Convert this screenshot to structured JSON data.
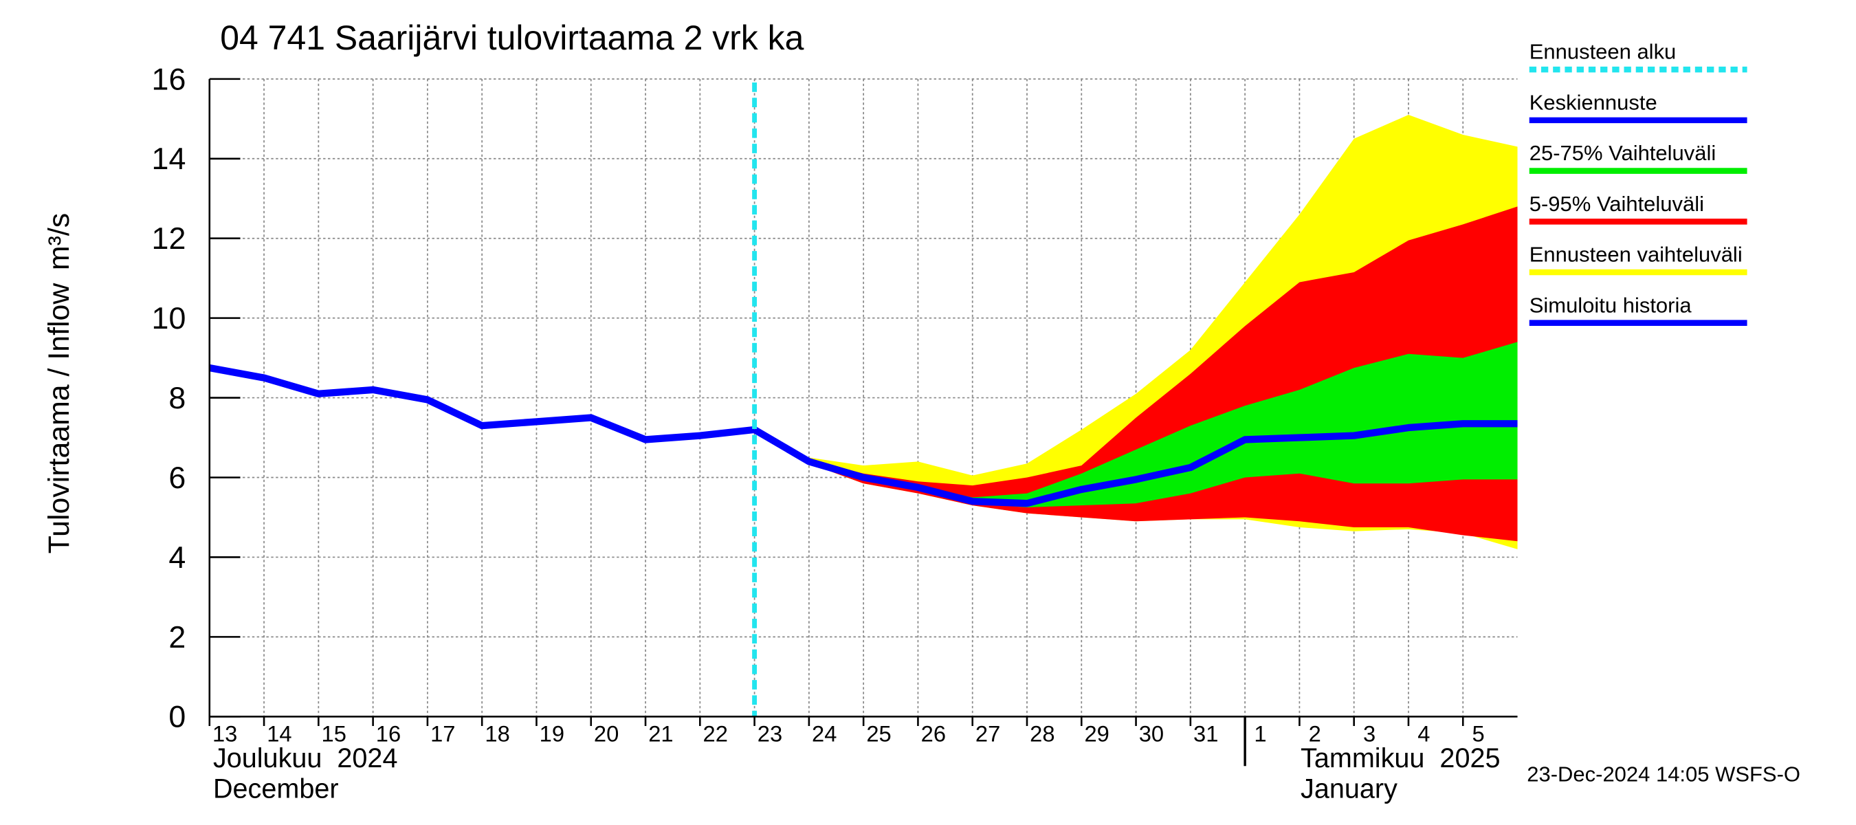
{
  "chart_data": {
    "type": "line",
    "title": "04 741 Saarijärvi tulovirtaama 2 vrk ka",
    "y_label": "Tulovirtaama / Inflow",
    "y_unit": "m³/s",
    "month_labels": [
      {
        "line1": "Joulukuu  2024",
        "line2": "December",
        "x": "2024-12-13"
      },
      {
        "line1": "Tammikuu  2025",
        "line2": "January",
        "x": "2025-01-01"
      }
    ],
    "footer": "23-Dec-2024 14:05 WSFS-O",
    "xlim": [
      "2024-12-13",
      "2025-01-06"
    ],
    "xticks": [
      {
        "value": "2024-12-13",
        "label": "13"
      },
      {
        "value": "2024-12-14",
        "label": "14"
      },
      {
        "value": "2024-12-15",
        "label": "15"
      },
      {
        "value": "2024-12-16",
        "label": "16"
      },
      {
        "value": "2024-12-17",
        "label": "17"
      },
      {
        "value": "2024-12-18",
        "label": "18"
      },
      {
        "value": "2024-12-19",
        "label": "19"
      },
      {
        "value": "2024-12-20",
        "label": "20"
      },
      {
        "value": "2024-12-21",
        "label": "21"
      },
      {
        "value": "2024-12-22",
        "label": "22"
      },
      {
        "value": "2024-12-23",
        "label": "23"
      },
      {
        "value": "2024-12-24",
        "label": "24"
      },
      {
        "value": "2024-12-25",
        "label": "25"
      },
      {
        "value": "2024-12-26",
        "label": "26"
      },
      {
        "value": "2024-12-27",
        "label": "27"
      },
      {
        "value": "2024-12-28",
        "label": "28"
      },
      {
        "value": "2024-12-29",
        "label": "29"
      },
      {
        "value": "2024-12-30",
        "label": "30"
      },
      {
        "value": "2024-12-31",
        "label": "31"
      },
      {
        "value": "2025-01-01",
        "label": "1"
      },
      {
        "value": "2025-01-02",
        "label": "2"
      },
      {
        "value": "2025-01-03",
        "label": "3"
      },
      {
        "value": "2025-01-04",
        "label": "4"
      },
      {
        "value": "2025-01-05",
        "label": "5"
      }
    ],
    "ylim": [
      0,
      16
    ],
    "yticks": [
      0,
      2,
      4,
      6,
      8,
      10,
      12,
      14,
      16
    ],
    "grid": true,
    "forecast_start": {
      "name": "Ennusteen alku",
      "x": "2024-12-23",
      "color": "#22e5ee"
    },
    "series": [
      {
        "name": "Simuloitu historia",
        "color": "#0000ff",
        "x": [
          "2024-12-13",
          "2024-12-14",
          "2024-12-15",
          "2024-12-16",
          "2024-12-17",
          "2024-12-18",
          "2024-12-19",
          "2024-12-20",
          "2024-12-21",
          "2024-12-22",
          "2024-12-23"
        ],
        "values": [
          8.75,
          8.5,
          8.1,
          8.2,
          7.95,
          7.3,
          7.4,
          7.5,
          6.95,
          7.05,
          7.2
        ]
      },
      {
        "name": "Keskiennuste",
        "color": "#0000ff",
        "x": [
          "2024-12-23",
          "2024-12-24",
          "2024-12-25",
          "2024-12-26",
          "2024-12-27",
          "2024-12-28",
          "2024-12-29",
          "2024-12-30",
          "2024-12-31",
          "2025-01-01",
          "2025-01-02",
          "2025-01-03",
          "2025-01-04",
          "2025-01-05",
          "2025-01-06"
        ],
        "values": [
          7.2,
          6.4,
          6.0,
          5.75,
          5.4,
          5.35,
          5.7,
          5.95,
          6.25,
          6.95,
          7.0,
          7.05,
          7.25,
          7.35,
          7.35
        ]
      }
    ],
    "band_x": [
      "2024-12-23",
      "2024-12-24",
      "2024-12-25",
      "2024-12-26",
      "2024-12-27",
      "2024-12-28",
      "2024-12-29",
      "2024-12-30",
      "2024-12-31",
      "2025-01-01",
      "2025-01-02",
      "2025-01-03",
      "2025-01-04",
      "2025-01-05",
      "2025-01-06"
    ],
    "bands": [
      {
        "name": "25-75% Vaihteluväli",
        "color": "#00ee00",
        "low": [
          7.2,
          6.4,
          5.95,
          5.7,
          5.35,
          5.25,
          5.3,
          5.35,
          5.6,
          6.0,
          6.1,
          5.85,
          5.85,
          5.95,
          5.95
        ],
        "high": [
          7.2,
          6.4,
          6.0,
          5.8,
          5.5,
          5.6,
          6.1,
          6.7,
          7.3,
          7.8,
          8.2,
          8.75,
          9.1,
          9.0,
          9.4
        ]
      },
      {
        "name": "5-95% Vaihteluväli",
        "color": "#ff0000",
        "low": [
          7.2,
          6.35,
          5.85,
          5.6,
          5.3,
          5.1,
          5.0,
          4.9,
          4.95,
          5.0,
          4.9,
          4.75,
          4.75,
          4.55,
          4.4
        ],
        "high": [
          7.2,
          6.45,
          6.1,
          5.9,
          5.8,
          6.0,
          6.3,
          7.5,
          8.6,
          9.8,
          10.9,
          11.15,
          11.95,
          12.35,
          12.8
        ]
      },
      {
        "name": "Ennusteen vaihteluväli",
        "color": "#ffff00",
        "low": [
          7.2,
          6.35,
          5.85,
          5.6,
          5.3,
          5.1,
          5.0,
          4.9,
          4.95,
          4.95,
          4.75,
          4.65,
          4.7,
          4.6,
          4.2
        ],
        "high": [
          7.2,
          6.5,
          6.3,
          6.4,
          6.05,
          6.35,
          7.2,
          8.1,
          9.2,
          10.9,
          12.6,
          14.5,
          15.1,
          14.6,
          14.3
        ]
      }
    ]
  }
}
